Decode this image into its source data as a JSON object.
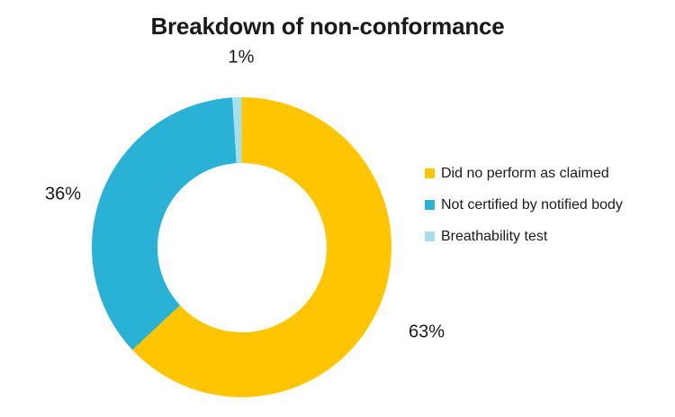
{
  "chart_data": {
    "type": "pie",
    "subtype": "donut",
    "title": "Breakdown of non-conformance",
    "categories": [
      "Did no perform as claimed",
      "Not certified by notified body",
      "Breathability test"
    ],
    "values": [
      63,
      36,
      1
    ],
    "unit": "%",
    "data_labels": [
      "63%",
      "36%",
      "1%"
    ],
    "colors": [
      "#FFC600",
      "#29B2D5",
      "#A7DEEE"
    ],
    "hole_ratio": 0.57,
    "start_angle_deg": 0,
    "direction": "clockwise",
    "legend_position": "right",
    "background_color": "#FFFFFF",
    "text_color": "#1A1A1A"
  }
}
